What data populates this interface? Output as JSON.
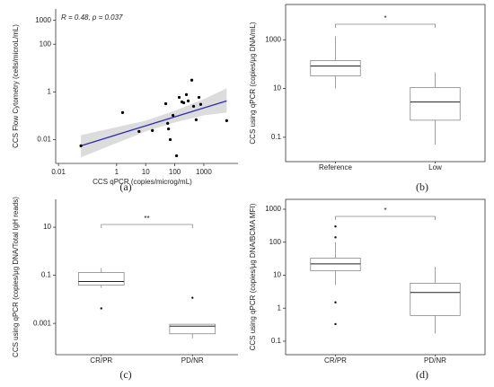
{
  "chart_data": [
    {
      "type": "scatter",
      "panel": "(a)",
      "annotation": "R = 0.48, p = 0.037",
      "x_label": "CCS qPCR (copies/microg/mL)",
      "y_label": "CCS Flow Cytometry (cells/microL/mL)",
      "log_x": true,
      "log_y": true,
      "xlim": [
        0.008,
        15000
      ],
      "ylim": [
        0.001,
        3000
      ],
      "xticks": [
        0.01,
        1,
        10,
        100,
        1000
      ],
      "yticks": [
        0.01,
        1,
        100,
        1000
      ],
      "x": [
        0.059,
        1.6,
        5.9,
        17,
        49,
        57,
        61,
        70,
        87,
        115,
        142,
        176,
        203,
        251,
        290,
        385,
        444,
        545,
        678,
        780,
        6100
      ],
      "values": [
        0.0055,
        0.136,
        0.022,
        0.024,
        0.32,
        0.048,
        0.028,
        0.01,
        0.104,
        0.0021,
        0.59,
        0.38,
        0.35,
        0.77,
        0.42,
        3.1,
        0.25,
        0.068,
        0.59,
        0.3,
        0.062
      ],
      "color": "#000000",
      "fit": {
        "x": [
          0.059,
          6100
        ],
        "y": [
          0.0055,
          0.42
        ],
        "color": "#2b2bb0"
      },
      "band": {
        "x": [
          0.059,
          10,
          100,
          1000,
          6100
        ],
        "lower": [
          0.0018,
          0.022,
          0.052,
          0.104,
          0.136
        ],
        "upper": [
          0.0154,
          0.062,
          0.161,
          0.5,
          1.42
        ],
        "color": "#dcdcdc"
      }
    },
    {
      "type": "box",
      "panel": "(b)",
      "y_label": "CCS using qPCR (copies/μg DNA/mL)",
      "log_y": true,
      "frame": true,
      "ylim": [
        0.01,
        28000
      ],
      "yticks": [
        0.1,
        10,
        1000
      ],
      "categories": [
        "Reference",
        "Low"
      ],
      "boxes": [
        {
          "min": 10,
          "q1": 33,
          "median": 84,
          "q3": 140,
          "max": 1400,
          "outliers": []
        },
        {
          "min": 0.05,
          "q1": 0.5,
          "median": 2.8,
          "q3": 11,
          "max": 46,
          "outliers": []
        }
      ],
      "significance": "*",
      "color": "#888888"
    },
    {
      "type": "box",
      "panel": "(c)",
      "y_label": "CCS using qPCR (copies/μg DNA/Total IgH reads)",
      "log_y": true,
      "frame": false,
      "ylim": [
        5e-05,
        144
      ],
      "yticks": [
        0.001,
        0.1,
        10
      ],
      "categories": [
        "CR/PR",
        "PD/NR"
      ],
      "boxes": [
        {
          "min": 0.03,
          "q1": 0.039,
          "median": 0.055,
          "q3": 0.13,
          "max": 0.2,
          "outliers": [
            0.0042
          ]
        },
        {
          "min": 0.00024,
          "q1": 0.00037,
          "median": 0.00077,
          "q3": 0.00092,
          "max": 0.00092,
          "outliers": [
            0.0116
          ]
        }
      ],
      "significance": "**",
      "color": "#888888"
    },
    {
      "type": "box",
      "panel": "(d)",
      "y_label": "CCS using qPCR (copies/μg DNA/BCMA MFI)",
      "log_y": true,
      "frame": true,
      "ylim": [
        0.039,
        1990
      ],
      "yticks": [
        0.1,
        1,
        10,
        100,
        1000
      ],
      "categories": [
        "CR/PR",
        "PD/NR"
      ],
      "boxes": [
        {
          "min": 5,
          "q1": 13.7,
          "median": 22,
          "q3": 33,
          "max": 100,
          "outliers": [
            300,
            140,
            1.5,
            0.33
          ]
        },
        {
          "min": 0.17,
          "q1": 0.6,
          "median": 3,
          "q3": 5.7,
          "max": 18,
          "outliers": []
        }
      ],
      "significance": "*",
      "color": "#888888"
    }
  ]
}
